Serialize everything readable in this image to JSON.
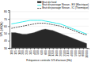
{
  "chart_data": {
    "type": "line",
    "xlabel": "Fréquence centrale 1/3 d'octave (Hz)",
    "ylabel": "SPL (dB(A))",
    "categories": [
      "100",
      "125",
      "160",
      "200",
      "250",
      "315",
      "400",
      "500",
      "630",
      "800",
      "1000",
      "1250",
      "1600",
      "2000",
      "2500",
      "3150",
      "4000",
      "5000",
      "6300",
      "8000",
      "10000"
    ],
    "series": [
      {
        "name": "Bruit de fond",
        "type": "area",
        "color": "#282828",
        "values": [
          51,
          51,
          50,
          49,
          49,
          50,
          51,
          53,
          55,
          56,
          55,
          54,
          52,
          50,
          48,
          46,
          44,
          42,
          40,
          38,
          36
        ]
      },
      {
        "name": "Bruit de passage Nissan - EV (Electrique)",
        "type": "line",
        "color": "#00e8e8",
        "line_style": "solid",
        "values": [
          63,
          64,
          65,
          66,
          67,
          68,
          68,
          68,
          68,
          67,
          66,
          65,
          64,
          63,
          61,
          59,
          57,
          55,
          53,
          51,
          49
        ]
      },
      {
        "name": "Bruit de passage Nissan - IC (Thermique)",
        "type": "line",
        "color": "#222222",
        "line_style": "dashed",
        "values": [
          57,
          58,
          59,
          60,
          61,
          62,
          63,
          64,
          64,
          64,
          63,
          62,
          61,
          60,
          58,
          57,
          55,
          53,
          51,
          49,
          48
        ]
      }
    ],
    "ylim": [
      30,
      82
    ],
    "yticks": [
      30,
      40,
      50,
      60,
      70,
      80
    ],
    "grid": true,
    "legend": "upper right"
  }
}
